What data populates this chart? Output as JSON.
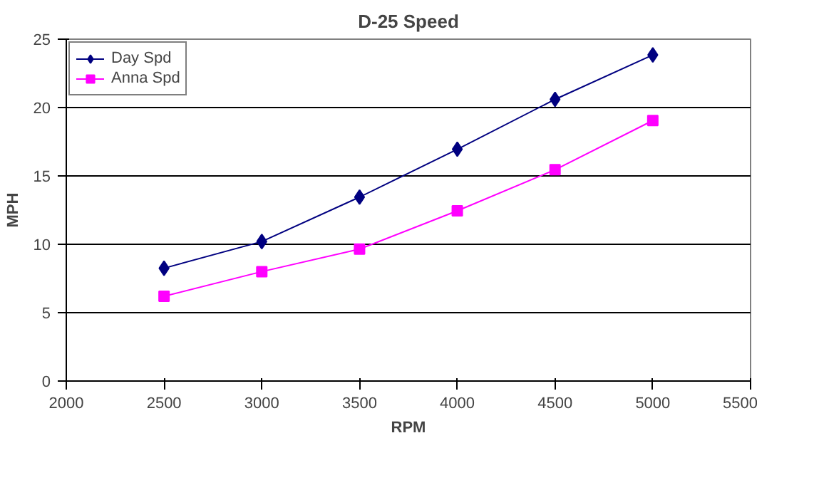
{
  "chart_data": {
    "type": "line",
    "title": "D-25 Speed",
    "xlabel": "RPM",
    "ylabel": "MPH",
    "x": [
      2500,
      3000,
      3500,
      4000,
      4500,
      5000
    ],
    "series": [
      {
        "name": "Day Spd",
        "color": "#000080",
        "marker": "diamond",
        "values": [
          8.25,
          10.2,
          13.45,
          16.95,
          20.6,
          23.85
        ]
      },
      {
        "name": "Anna Spd",
        "color": "#ff00ff",
        "marker": "square",
        "values": [
          6.2,
          8.0,
          9.65,
          12.45,
          15.45,
          19.05
        ]
      }
    ],
    "xlim": [
      2000,
      5500
    ],
    "xticks": [
      2000,
      2500,
      3000,
      3500,
      4000,
      4500,
      5000,
      5500
    ],
    "ylim": [
      0,
      25
    ],
    "yticks": [
      0,
      5,
      10,
      15,
      20,
      25
    ],
    "grid": "y",
    "legend": "top left",
    "line_style": "solid"
  }
}
